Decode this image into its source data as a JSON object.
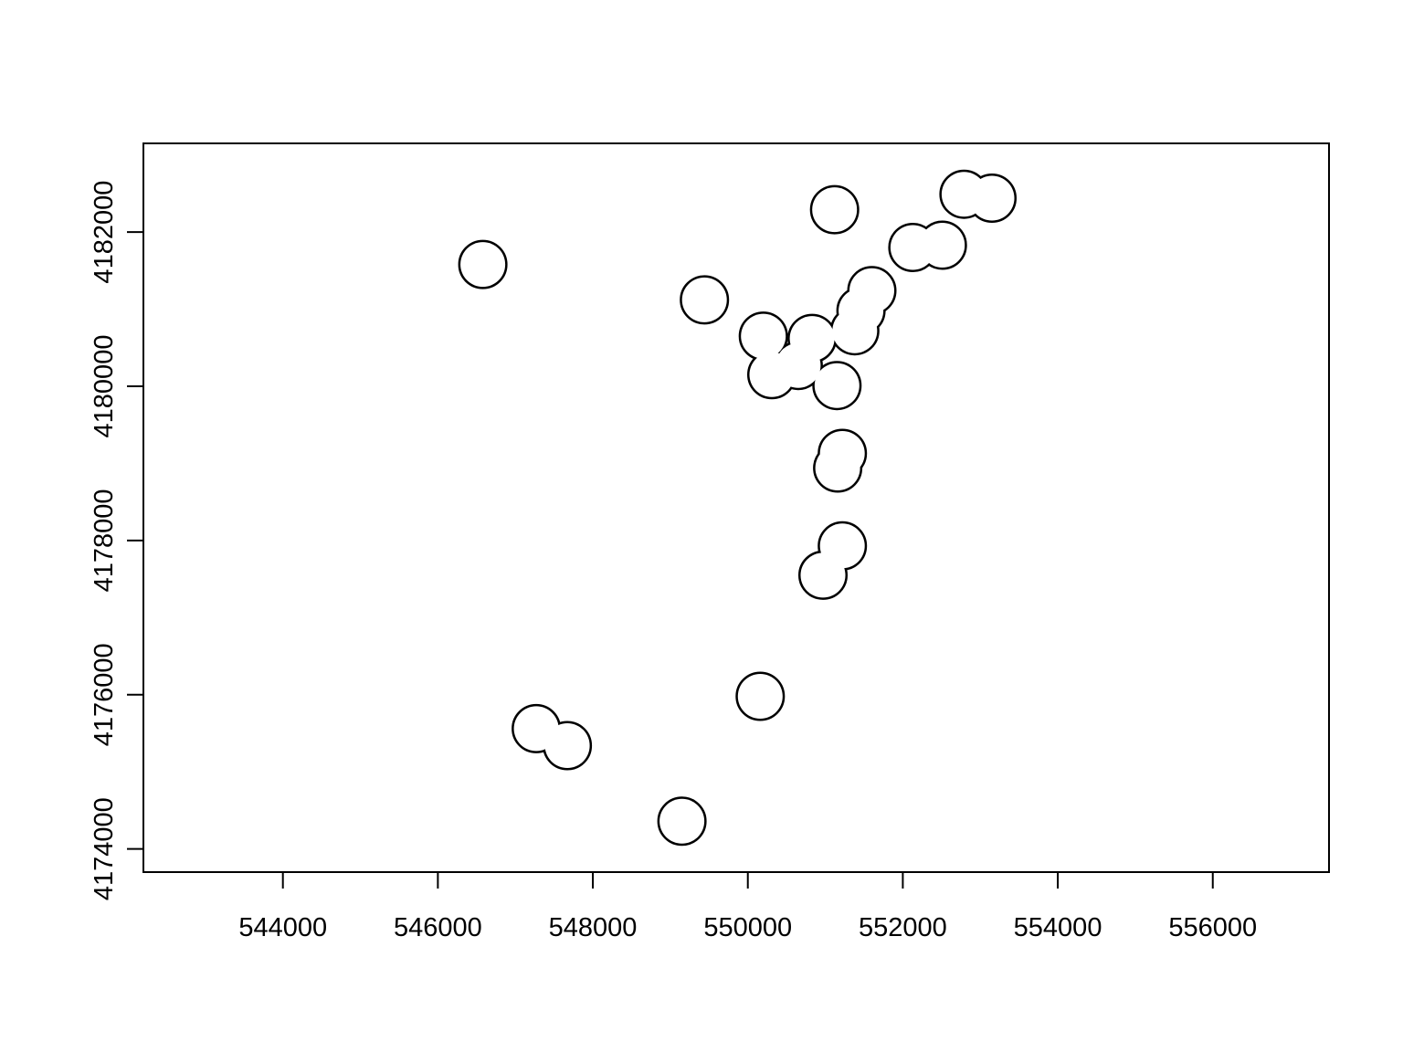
{
  "chart_data": {
    "type": "scatter",
    "title": "",
    "xlabel": "",
    "ylabel": "",
    "xlim": [
      542200,
      557500
    ],
    "ylim": [
      4173700,
      4183150
    ],
    "x_ticks": [
      544000,
      546000,
      548000,
      550000,
      552000,
      554000,
      556000
    ],
    "x_tick_labels": [
      "544000",
      "546000",
      "548000",
      "550000",
      "552000",
      "554000",
      "556000"
    ],
    "y_ticks": [
      4174000,
      4176000,
      4178000,
      4180000,
      4182000
    ],
    "y_tick_labels": [
      "4174000",
      "4176000",
      "4178000",
      "4180000",
      "4182000"
    ],
    "grid": false,
    "buffer_radius": 300,
    "stroke_color": "#000000",
    "fill_color": "#ffffff",
    "points": [
      {
        "x": 546580,
        "y": 4181580
      },
      {
        "x": 549440,
        "y": 4181120
      },
      {
        "x": 551120,
        "y": 4182290
      },
      {
        "x": 550200,
        "y": 4180650
      },
      {
        "x": 550310,
        "y": 4180150
      },
      {
        "x": 550650,
        "y": 4180270
      },
      {
        "x": 550830,
        "y": 4180620
      },
      {
        "x": 551150,
        "y": 4180010
      },
      {
        "x": 551380,
        "y": 4180720
      },
      {
        "x": 551460,
        "y": 4180980
      },
      {
        "x": 551600,
        "y": 4181240
      },
      {
        "x": 552130,
        "y": 4181800
      },
      {
        "x": 552510,
        "y": 4181830
      },
      {
        "x": 552790,
        "y": 4182490
      },
      {
        "x": 553150,
        "y": 4182440
      },
      {
        "x": 551220,
        "y": 4179130
      },
      {
        "x": 551160,
        "y": 4178940
      },
      {
        "x": 551220,
        "y": 4177930
      },
      {
        "x": 550970,
        "y": 4177550
      },
      {
        "x": 550160,
        "y": 4175980
      },
      {
        "x": 547270,
        "y": 4175560
      },
      {
        "x": 547670,
        "y": 4175340
      },
      {
        "x": 549150,
        "y": 4174360
      }
    ]
  }
}
